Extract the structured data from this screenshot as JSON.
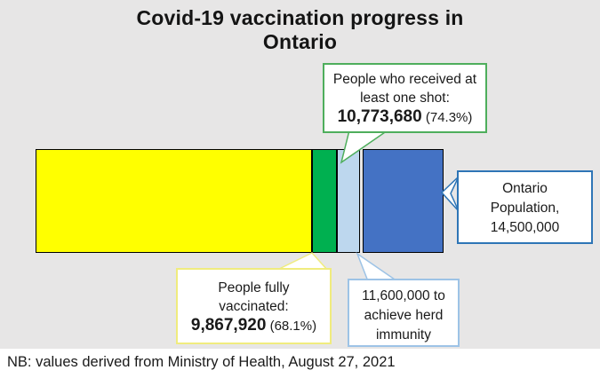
{
  "header": {
    "title_line1": "Covid-19 vaccination progress in",
    "title_line2": "Ontario"
  },
  "note": "NB: values derived from Ministry of Health, August 27, 2021",
  "colors": {
    "canvas_background": "#E7E6E6",
    "bar_yellow": "#FFFF00",
    "bar_green": "#00B050",
    "bar_light_blue": "#BDD7EE",
    "bar_blue": "#4472C4",
    "callout_border_green": "#4EAE5C",
    "callout_border_blue": "#2E75B6",
    "callout_border_light_blue": "#9DC3E6",
    "callout_border_yellow": "#F0EC7E"
  },
  "callouts": {
    "one_shot": {
      "line1": "People who received at",
      "line2": "least one shot:",
      "value": "10,773,680",
      "percent": " (74.3%)"
    },
    "population": {
      "line1": "Ontario",
      "line2": "Population,",
      "line3": "14,500,000"
    },
    "fully": {
      "line1": "People fully",
      "line2": "vaccinated:",
      "value": "9,867,920",
      "percent": " (68.1%)"
    },
    "herd": {
      "line1": "11,600,000 to",
      "line2": "achieve herd",
      "line3": "immunity"
    }
  },
  "chart_data": {
    "type": "bar",
    "orientation": "horizontal",
    "stacked": true,
    "title": "Covid-19 vaccination progress in Ontario",
    "unit": "people",
    "total_population": 14500000,
    "segments": [
      {
        "label": "People fully vaccinated",
        "value": 9867920,
        "percent_of_total": 68.1,
        "span_percent": 68.1,
        "color": "#FFFF00"
      },
      {
        "label": "People who received at least one shot (additional beyond fully vaccinated)",
        "cumulative_value": 10773680,
        "cumulative_percent": 74.3,
        "span_percent": 6.2,
        "color": "#00B050"
      },
      {
        "label": "Remaining to reach herd immunity threshold",
        "cumulative_value": 11600000,
        "cumulative_percent": 80.0,
        "span_percent": 5.7,
        "color": "#BDD7EE"
      },
      {
        "label": "Rest of Ontario population",
        "cumulative_value": 14500000,
        "cumulative_percent": 100.0,
        "span_percent": 20.0,
        "color": "#4472C4"
      }
    ],
    "annotations": [
      "People who received at least one shot: 10,773,680 (74.3%)",
      "People fully vaccinated: 9,867,920 (68.1%)",
      "11,600,000 to achieve herd immunity",
      "Ontario Population, 14,500,000"
    ],
    "source_note": "NB: values derived from Ministry of Health, August 27, 2021",
    "legend": false,
    "grid": false
  }
}
